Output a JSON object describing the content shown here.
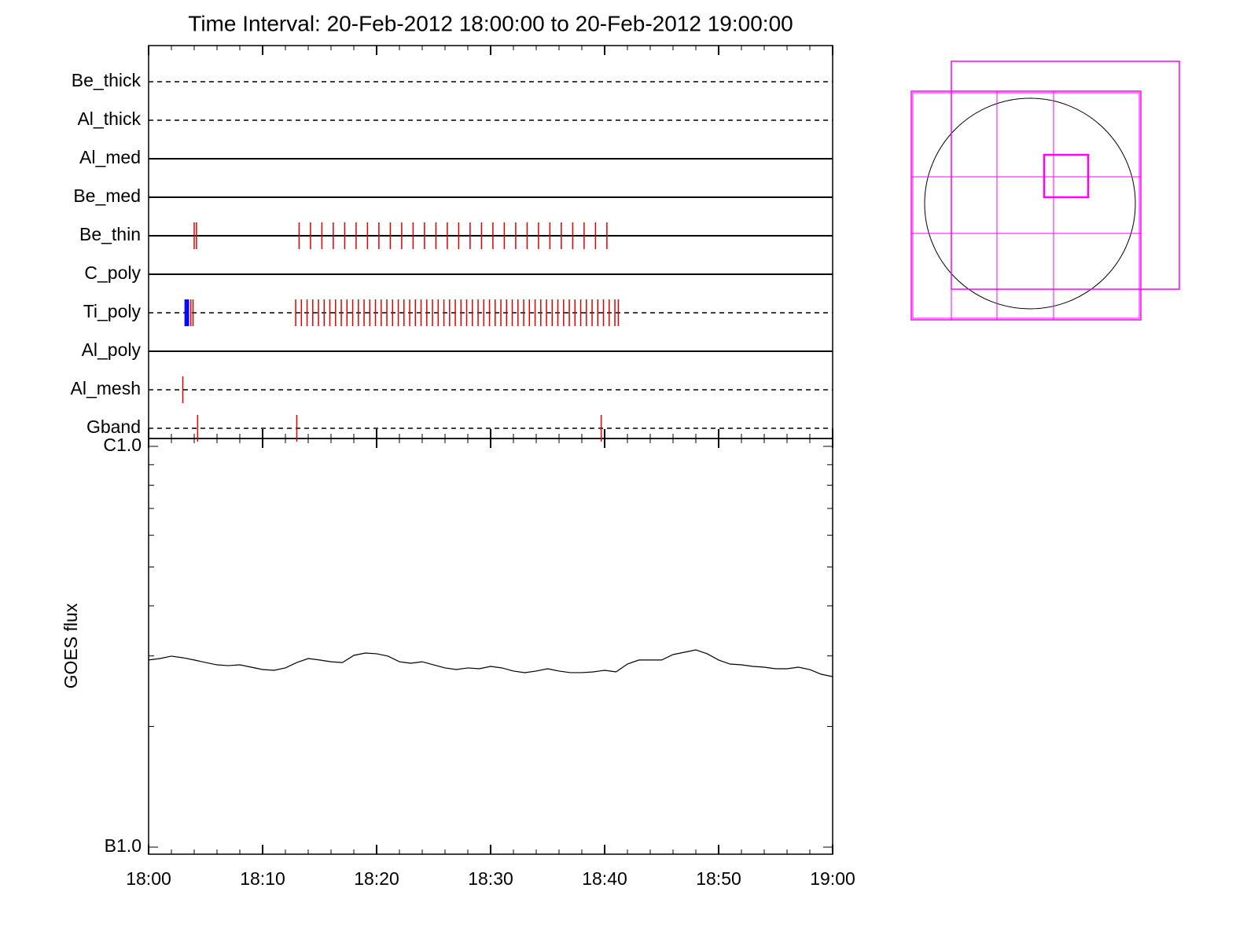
{
  "chart_data": [
    {
      "type": "timeline",
      "title": "Time Interval: 20-Feb-2012 18:00:00 to 20-Feb-2012 19:00:00",
      "series": [
        {
          "name": "Be_thick",
          "style": "dashed",
          "events": []
        },
        {
          "name": "Al_thick",
          "style": "dashed",
          "events": []
        },
        {
          "name": "Al_med",
          "style": "solid",
          "events": []
        },
        {
          "name": "Be_med",
          "style": "solid",
          "events": []
        },
        {
          "name": "Be_thin",
          "style": "solid",
          "events": [
            {
              "color": "#e00000",
              "times": [
                4.0,
                4.2,
                13.2,
                14.2,
                15.2,
                16.2,
                17.2,
                18.2,
                19.2,
                20.2,
                21.2,
                22.2,
                23.2,
                24.2,
                25.2,
                26.2,
                27.2,
                28.2,
                29.2,
                30.2,
                31.2,
                32.2,
                33.2,
                34.2,
                35.2,
                36.2,
                37.2,
                38.2,
                39.2,
                40.2
              ]
            }
          ]
        },
        {
          "name": "C_poly",
          "style": "solid",
          "events": []
        },
        {
          "name": "Ti_poly",
          "style": "dashed",
          "events": [
            {
              "color": "#0000ff",
              "times": [
                3.2,
                3.3,
                3.4,
                3.5
              ]
            },
            {
              "color": "#e00000",
              "times": [
                3.7,
                3.9,
                12.9,
                13.4,
                13.9,
                14.4,
                14.9,
                15.4,
                15.9,
                16.4,
                16.9,
                17.4,
                17.9,
                18.4,
                18.9,
                19.4,
                19.9,
                20.4,
                20.9,
                21.4,
                21.9,
                22.4,
                22.9,
                23.4,
                23.9,
                24.4,
                24.9,
                25.4,
                25.9,
                26.4,
                26.9,
                27.4,
                27.9,
                28.4,
                28.9,
                29.4,
                29.9,
                30.4,
                30.9,
                31.4,
                31.9,
                32.4,
                32.9,
                33.4,
                33.9,
                34.4,
                34.9,
                35.4,
                35.9,
                36.4,
                36.9,
                37.4,
                37.9,
                38.4,
                38.9,
                39.4,
                39.9,
                40.4,
                40.9,
                41.2
              ]
            }
          ]
        },
        {
          "name": "Al_poly",
          "style": "solid",
          "events": []
        },
        {
          "name": "Al_mesh",
          "style": "dashed",
          "events": [
            {
              "color": "#e00000",
              "times": [
                3.0
              ]
            }
          ]
        },
        {
          "name": "Gband",
          "style": "dashed",
          "events": [
            {
              "color": "#e00000",
              "times": [
                4.3,
                13.0,
                39.7
              ]
            }
          ]
        }
      ]
    },
    {
      "type": "line",
      "y_label": "GOES flux",
      "log_y": true,
      "xlim": [
        0,
        60
      ],
      "xticks": [
        {
          "value": 0,
          "label": "18:00"
        },
        {
          "value": 10,
          "label": "18:10"
        },
        {
          "value": 20,
          "label": "18:20"
        },
        {
          "value": 30,
          "label": "18:30"
        },
        {
          "value": 40,
          "label": "18:40"
        },
        {
          "value": 50,
          "label": "18:50"
        },
        {
          "value": 60,
          "label": "19:00"
        }
      ],
      "xminorticks": [
        2,
        4,
        6,
        8,
        12,
        14,
        16,
        18,
        22,
        24,
        26,
        28,
        32,
        34,
        36,
        38,
        42,
        44,
        46,
        48,
        52,
        54,
        56,
        58
      ],
      "ylim": [
        1e-07,
        1e-06
      ],
      "yticks": [
        {
          "value": 1e-07,
          "label": "B1.0"
        },
        {
          "value": 1e-06,
          "label": "C1.0"
        }
      ],
      "yminorticks": [
        2e-07,
        3e-07,
        4e-07,
        5e-07,
        6e-07,
        7e-07,
        8e-07,
        9e-07
      ],
      "x": [
        0,
        1,
        2,
        3,
        4,
        5,
        6,
        7,
        8,
        9,
        10,
        11,
        12,
        13,
        14,
        15,
        16,
        17,
        18,
        19,
        20,
        21,
        22,
        23,
        24,
        25,
        26,
        27,
        28,
        29,
        30,
        31,
        32,
        33,
        34,
        35,
        36,
        37,
        38,
        39,
        40,
        41,
        42,
        43,
        44,
        45,
        46,
        47,
        48,
        49,
        50,
        51,
        52,
        53,
        54,
        55,
        56,
        57,
        58,
        59,
        60
      ],
      "series": [
        {
          "color": "#000000",
          "values": [
            2.93e-07,
            2.955e-07,
            2.996e-07,
            2.969e-07,
            2.93e-07,
            2.888e-07,
            2.85e-07,
            2.837e-07,
            2.85e-07,
            2.812e-07,
            2.774e-07,
            2.762e-07,
            2.8e-07,
            2.888e-07,
            2.955e-07,
            2.93e-07,
            2.901e-07,
            2.888e-07,
            3.009e-07,
            3.05e-07,
            3.037e-07,
            2.996e-07,
            2.901e-07,
            2.876e-07,
            2.901e-07,
            2.85e-07,
            2.8e-07,
            2.774e-07,
            2.8e-07,
            2.787e-07,
            2.825e-07,
            2.8e-07,
            2.75e-07,
            2.725e-07,
            2.75e-07,
            2.787e-07,
            2.75e-07,
            2.725e-07,
            2.725e-07,
            2.737e-07,
            2.762e-07,
            2.737e-07,
            2.863e-07,
            2.93e-07,
            2.93e-07,
            2.93e-07,
            3.023e-07,
            3.064e-07,
            3.106e-07,
            3.037e-07,
            2.93e-07,
            2.863e-07,
            2.85e-07,
            2.825e-07,
            2.812e-07,
            2.787e-07,
            2.787e-07,
            2.812e-07,
            2.774e-07,
            2.7e-07,
            2.664e-07
          ]
        }
      ]
    }
  ]
}
